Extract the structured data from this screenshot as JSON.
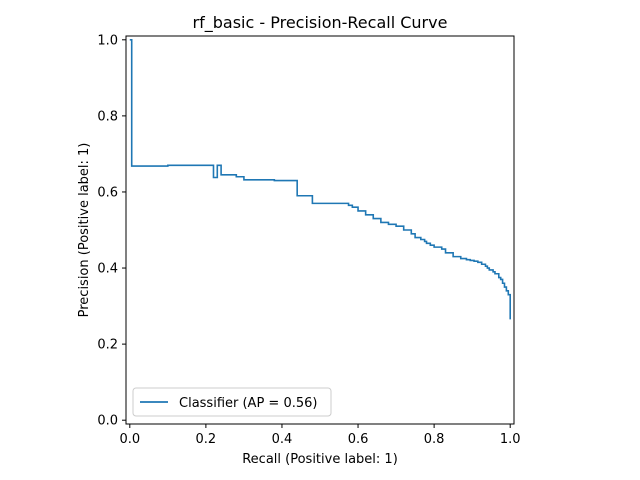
{
  "chart_data": {
    "type": "line",
    "title": "rf_basic - Precision-Recall Curve",
    "xlabel": "Recall (Positive label: 1)",
    "ylabel": "Precision (Positive label: 1)",
    "xlim": [
      -0.01,
      1.01
    ],
    "ylim": [
      -0.01,
      1.01
    ],
    "xticks": [
      0.0,
      0.2,
      0.4,
      0.6,
      0.8,
      1.0
    ],
    "yticks": [
      0.0,
      0.2,
      0.4,
      0.6,
      0.8,
      1.0
    ],
    "xtick_labels": [
      "0.0",
      "0.2",
      "0.4",
      "0.6",
      "0.8",
      "1.0"
    ],
    "ytick_labels": [
      "0.0",
      "0.2",
      "0.4",
      "0.6",
      "0.8",
      "1.0"
    ],
    "grid": false,
    "legend_position": "lower-left",
    "step": true,
    "series": [
      {
        "name": "Classifier (AP = 0.56)",
        "color": "#1f77b4",
        "recall": [
          1.0,
          1.0,
          0.995,
          0.99,
          0.985,
          0.98,
          0.975,
          0.97,
          0.96,
          0.955,
          0.945,
          0.94,
          0.935,
          0.925,
          0.915,
          0.905,
          0.895,
          0.885,
          0.87,
          0.85,
          0.83,
          0.82,
          0.8,
          0.79,
          0.78,
          0.775,
          0.765,
          0.75,
          0.74,
          0.72,
          0.7,
          0.68,
          0.66,
          0.64,
          0.62,
          0.6,
          0.585,
          0.575,
          0.56,
          0.48,
          0.44,
          0.42,
          0.38,
          0.33,
          0.3,
          0.28,
          0.24,
          0.23,
          0.22,
          0.1,
          0.005,
          0.0
        ],
        "precision": [
          0.265,
          0.325,
          0.33,
          0.34,
          0.35,
          0.36,
          0.37,
          0.375,
          0.385,
          0.39,
          0.395,
          0.4,
          0.405,
          0.41,
          0.415,
          0.418,
          0.42,
          0.422,
          0.425,
          0.43,
          0.44,
          0.45,
          0.455,
          0.46,
          0.465,
          0.47,
          0.475,
          0.48,
          0.49,
          0.5,
          0.51,
          0.515,
          0.52,
          0.53,
          0.54,
          0.55,
          0.56,
          0.565,
          0.57,
          0.57,
          0.59,
          0.63,
          0.63,
          0.632,
          0.632,
          0.64,
          0.645,
          0.67,
          0.638,
          0.67,
          0.668,
          1.0
        ]
      }
    ]
  }
}
